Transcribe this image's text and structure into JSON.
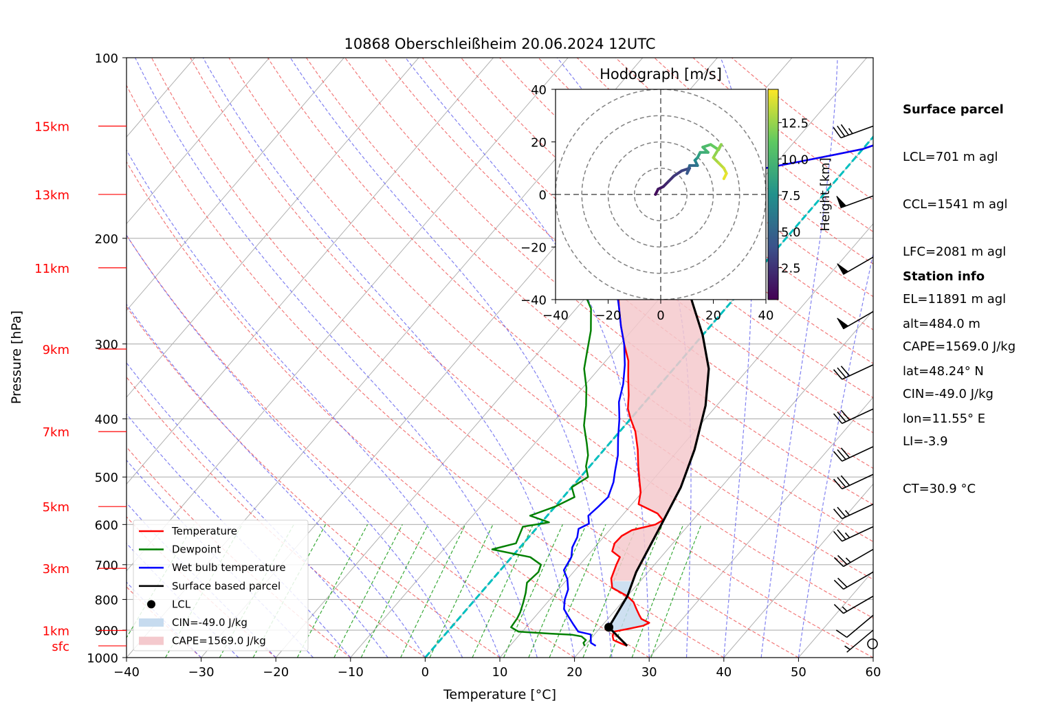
{
  "chart_data": {
    "type": "line",
    "title": "10868 Oberschleißheim 20.06.2024 12UTC",
    "xlabel": "Temperature [°C]",
    "ylabel": "Pressure [hPa]",
    "x_range": [
      -40,
      60
    ],
    "y_range": [
      1000,
      100
    ],
    "y_scale": "log",
    "x_ticks": [
      "−40",
      "−30",
      "−20",
      "−10",
      "0",
      "10",
      "20",
      "30",
      "40",
      "50",
      "60"
    ],
    "y_ticks": [
      "100",
      "200",
      "300",
      "400",
      "500",
      "600",
      "700",
      "800",
      "900",
      "1000"
    ],
    "height_labels": [
      {
        "label": "15km",
        "p": 130
      },
      {
        "label": "13km",
        "p": 169
      },
      {
        "label": "11km",
        "p": 224
      },
      {
        "label": "9km",
        "p": 306
      },
      {
        "label": "7km",
        "p": 420
      },
      {
        "label": "5km",
        "p": 560
      },
      {
        "label": "3km",
        "p": 710
      },
      {
        "label": "1km",
        "p": 901
      },
      {
        "label": "sfc",
        "p": 956
      }
    ],
    "series": [
      {
        "name": "Temperature",
        "color": "#ff0000",
        "points": [
          [
            25.7,
            956
          ],
          [
            24.7,
            948
          ],
          [
            23.2,
            935
          ],
          [
            22.6,
            920
          ],
          [
            22.3,
            905
          ],
          [
            24,
            895
          ],
          [
            25.5,
            885
          ],
          [
            26.0,
            875
          ],
          [
            24.5,
            862
          ],
          [
            23.8,
            850
          ],
          [
            22.7,
            830
          ],
          [
            21.5,
            808
          ],
          [
            20.0,
            790
          ],
          [
            17.0,
            765
          ],
          [
            15.8,
            738
          ],
          [
            14.9,
            700
          ],
          [
            14.5,
            680
          ],
          [
            12.8,
            665
          ],
          [
            12.2,
            645
          ],
          [
            12.3,
            627
          ],
          [
            13.0,
            613
          ],
          [
            15.5,
            600
          ],
          [
            16.0,
            590
          ],
          [
            14.5,
            575
          ],
          [
            10.9,
            555
          ],
          [
            9.8,
            530
          ],
          [
            8.5,
            510
          ],
          [
            6.5,
            480
          ],
          [
            4.5,
            450
          ],
          [
            2.1,
            420
          ],
          [
            0.0,
            400
          ],
          [
            -1.5,
            385
          ],
          [
            -3.0,
            365
          ],
          [
            -5.2,
            340
          ],
          [
            -7.0,
            320
          ],
          [
            -9.5,
            300
          ],
          [
            -12.0,
            280
          ],
          [
            -14.5,
            260
          ],
          [
            -17.0,
            240
          ],
          [
            -19.5,
            225
          ],
          [
            -22.0,
            213
          ],
          [
            -23.4,
            205
          ],
          [
            -22.5,
            200
          ],
          [
            -22.0,
            193
          ],
          [
            -20.0,
            182
          ],
          [
            -19.0,
            175
          ],
          [
            -19.5,
            165
          ],
          [
            -18.0,
            160
          ],
          [
            -16.0,
            157
          ],
          [
            -11.0,
            153
          ],
          [
            -7.0,
            149
          ],
          [
            -3.0,
            145
          ],
          [
            0,
            142
          ],
          [
            2.0,
            138
          ],
          [
            3.5,
            133
          ],
          [
            5.5,
            128
          ],
          [
            6.0,
            125
          ]
        ]
      },
      {
        "name": "Dewpoint",
        "color": "#008000",
        "points": [
          [
            20,
            956
          ],
          [
            19.5,
            945
          ],
          [
            19.5,
            935
          ],
          [
            18.5,
            922
          ],
          [
            17,
            916
          ],
          [
            14,
            912
          ],
          [
            9.5,
            905
          ],
          [
            8.0,
            890
          ],
          [
            7.8,
            860
          ],
          [
            7.5,
            840
          ],
          [
            6.8,
            810
          ],
          [
            6.0,
            780
          ],
          [
            5.0,
            750
          ],
          [
            5.3,
            720
          ],
          [
            4.8,
            700
          ],
          [
            2.5,
            680
          ],
          [
            -3.5,
            660
          ],
          [
            -1.0,
            645
          ],
          [
            -1.5,
            625
          ],
          [
            -2.0,
            605
          ],
          [
            1.0,
            595
          ],
          [
            -2.3,
            580
          ],
          [
            0.0,
            560
          ],
          [
            1.5,
            540
          ],
          [
            0.0,
            520
          ],
          [
            1.0,
            500
          ],
          [
            -0.5,
            480
          ],
          [
            -1.5,
            460
          ],
          [
            -3.0,
            440
          ],
          [
            -5.5,
            410
          ],
          [
            -7.5,
            380
          ],
          [
            -9.5,
            355
          ],
          [
            -12.0,
            330
          ],
          [
            -13.5,
            310
          ],
          [
            -15.5,
            285
          ],
          [
            -18.0,
            262
          ],
          [
            -21.0,
            245
          ],
          [
            -23.5,
            232
          ],
          [
            -21.5,
            220
          ],
          [
            -24,
            210
          ],
          [
            -24,
            200
          ],
          [
            -23.5,
            190
          ],
          [
            -25.0,
            182
          ],
          [
            -26.0,
            170
          ],
          [
            -23.0,
            158
          ],
          [
            -23.0,
            155
          ],
          [
            -28.0,
            152
          ],
          [
            -31.0,
            148
          ],
          [
            -31.5,
            146
          ],
          [
            -29.0,
            142
          ],
          [
            -27.5,
            137
          ],
          [
            -26.0,
            133
          ],
          [
            -25.5,
            130
          ]
        ]
      },
      {
        "name": "Wet bulb temperature",
        "color": "#0000ff",
        "points": [
          [
            21.5,
            956
          ],
          [
            20.5,
            945
          ],
          [
            20.0,
            930
          ],
          [
            19.5,
            915
          ],
          [
            17.5,
            905
          ],
          [
            16,
            880
          ],
          [
            14.5,
            855
          ],
          [
            13.0,
            830
          ],
          [
            12.0,
            800
          ],
          [
            11.3,
            770
          ],
          [
            10.0,
            740
          ],
          [
            8.5,
            715
          ],
          [
            8.0,
            680
          ],
          [
            7.0,
            655
          ],
          [
            6.5,
            630
          ],
          [
            5.7,
            610
          ],
          [
            6.5,
            598
          ],
          [
            5.5,
            580
          ],
          [
            5.8,
            560
          ],
          [
            6.0,
            540
          ],
          [
            5.0,
            510
          ],
          [
            4.0,
            490
          ],
          [
            2.5,
            460
          ],
          [
            0.5,
            430
          ],
          [
            -1.5,
            400
          ],
          [
            -3.5,
            375
          ],
          [
            -5.0,
            350
          ],
          [
            -7.0,
            325
          ],
          [
            -9.5,
            300
          ],
          [
            -12.0,
            280
          ],
          [
            -14.5,
            260
          ],
          [
            -17.0,
            242
          ],
          [
            -19.0,
            228
          ],
          [
            -21.5,
            215
          ],
          [
            -23.7,
            207
          ],
          [
            -22.5,
            200
          ],
          [
            -22.0,
            195
          ],
          [
            -20.0,
            190
          ],
          [
            -19.0,
            183
          ],
          [
            -19.5,
            170
          ],
          [
            -18.5,
            160
          ],
          [
            -16.0,
            157
          ],
          [
            -11.0,
            153
          ],
          [
            -7.0,
            149
          ],
          [
            -3.0,
            145
          ],
          [
            0,
            142
          ],
          [
            2.0,
            138
          ],
          [
            3.5,
            133
          ],
          [
            5.2,
            128
          ],
          [
            5.5,
            125
          ]
        ]
      },
      {
        "name": "Surface based parcel",
        "color": "#000000",
        "points": [
          [
            25.7,
            956
          ],
          [
            21.1,
            890
          ],
          [
            20.0,
            790
          ],
          [
            18.4,
            720
          ],
          [
            16.3,
            600
          ],
          [
            14.6,
            520
          ],
          [
            12.1,
            450
          ],
          [
            8.5,
            380
          ],
          [
            4.7,
            330
          ],
          [
            0.0,
            290
          ],
          [
            -4.8,
            258
          ],
          [
            -10.0,
            227
          ],
          [
            -15.8,
            199
          ],
          [
            -21.1,
            174
          ],
          [
            -24.8,
            156
          ],
          [
            -27.2,
            145
          ],
          [
            -31.8,
            130
          ]
        ]
      }
    ],
    "lcl": {
      "label": "LCL",
      "t": 21.1,
      "p": 890
    },
    "legend": {
      "placement": "lower-left",
      "entries": [
        "Temperature",
        "Dewpoint",
        "Wet bulb temperature",
        "Surface based parcel",
        "LCL",
        "CIN=-49.0 J/kg",
        "CAPE=1569.0 J/kg"
      ]
    },
    "shading_colors": {
      "cin": "#c6dbef",
      "cape": "#f4c9cd"
    },
    "hodograph": {
      "title": "Hodograph [m/s]",
      "range": [
        -40,
        40
      ],
      "ticks": [
        "−40",
        "−20",
        "0",
        "20",
        "40"
      ],
      "rings": [
        10,
        20,
        30,
        40
      ],
      "colorbar_label": "Height [km]",
      "colorbar_ticks": [
        "2.5",
        "5.0",
        "7.5",
        "10.0",
        "12.5"
      ],
      "points": [
        [
          -2,
          0,
          0.5
        ],
        [
          -1,
          2,
          1
        ],
        [
          1,
          3,
          1.5
        ],
        [
          3,
          5,
          2
        ],
        [
          5,
          7,
          2.5
        ],
        [
          8,
          9,
          3
        ],
        [
          11,
          10,
          3.5
        ],
        [
          10,
          8,
          4
        ],
        [
          11,
          11,
          5
        ],
        [
          14,
          11,
          6
        ],
        [
          13,
          13,
          7
        ],
        [
          14,
          14,
          8
        ],
        [
          15,
          16,
          9
        ],
        [
          18,
          16,
          9.5
        ],
        [
          16,
          18,
          10
        ],
        [
          19,
          19,
          11
        ],
        [
          22,
          17,
          11.5
        ],
        [
          23,
          19,
          12
        ],
        [
          20,
          14,
          12.5
        ],
        [
          22,
          12,
          13
        ],
        [
          24,
          10,
          13.5
        ],
        [
          25,
          8,
          14
        ],
        [
          24,
          6,
          14.5
        ]
      ]
    },
    "wind_barbs": [
      {
        "p": 130,
        "speed_kt": 35,
        "dir_deg": 250
      },
      {
        "p": 170,
        "speed_kt": 50,
        "dir_deg": 250
      },
      {
        "p": 215,
        "speed_kt": 50,
        "dir_deg": 240
      },
      {
        "p": 265,
        "speed_kt": 50,
        "dir_deg": 240
      },
      {
        "p": 325,
        "speed_kt": 30,
        "dir_deg": 245
      },
      {
        "p": 385,
        "speed_kt": 30,
        "dir_deg": 245
      },
      {
        "p": 445,
        "speed_kt": 30,
        "dir_deg": 245
      },
      {
        "p": 495,
        "speed_kt": 30,
        "dir_deg": 245
      },
      {
        "p": 555,
        "speed_kt": 25,
        "dir_deg": 245
      },
      {
        "p": 605,
        "speed_kt": 25,
        "dir_deg": 245
      },
      {
        "p": 660,
        "speed_kt": 25,
        "dir_deg": 240
      },
      {
        "p": 720,
        "speed_kt": 20,
        "dir_deg": 240
      },
      {
        "p": 790,
        "speed_kt": 15,
        "dir_deg": 240
      },
      {
        "p": 850,
        "speed_kt": 10,
        "dir_deg": 230
      },
      {
        "p": 900,
        "speed_kt": 5,
        "dir_deg": 230
      }
    ]
  },
  "surface_parcel": {
    "heading": "Surface parcel",
    "lines": [
      "LCL=701 m agl",
      "CCL=1541 m agl",
      "LFC=2081 m agl",
      "EL=11891 m agl",
      "CAPE=1569.0 J/kg",
      "CIN=-49.0 J/kg",
      "LI=-3.9",
      "CT=30.9 °C"
    ]
  },
  "station_info": {
    "heading": "Station info",
    "lines": [
      "alt=484.0 m",
      "lat=48.24° N",
      "lon=11.55° E"
    ]
  }
}
